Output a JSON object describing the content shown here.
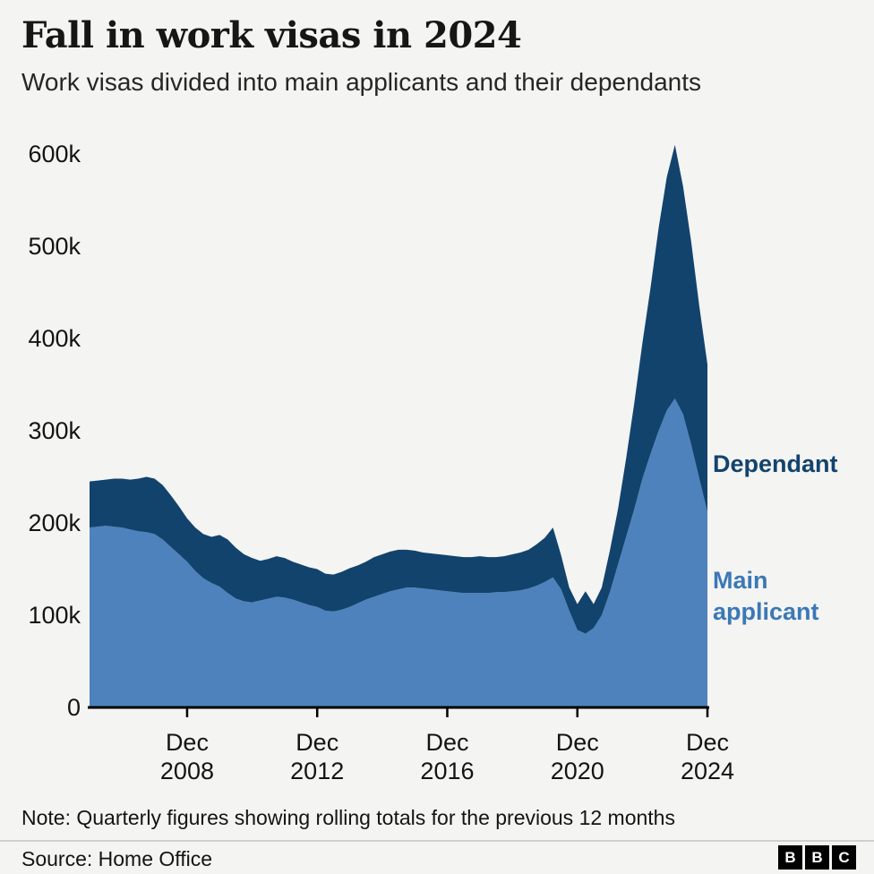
{
  "title": "Fall in work visas in 2024",
  "subtitle": "Work visas divided into main applicants and their dependants",
  "note": "Note: Quarterly figures showing rolling totals for the previous 12 months",
  "source": "Source: Home Office",
  "logo_letters": [
    "B",
    "B",
    "C"
  ],
  "labels": {
    "dependant": "Dependant",
    "main_line1": "Main",
    "main_line2": "applicant"
  },
  "colors": {
    "main": "#4d82bc",
    "dependant": "#12436D",
    "label_main": "#3b78b6",
    "label_dependant": "#12436D",
    "axis": "#000000",
    "background": "#f4f4f2"
  },
  "chart_data": {
    "type": "area",
    "stacked": true,
    "title": "Fall in work visas in 2024",
    "subtitle": "Work visas divided into main applicants and their dependants",
    "units": "thousands of visas (rolling 12-month totals, quarterly)",
    "x_start": "2005 Q4",
    "x_end": "2024 Q4",
    "frequency": "quarterly",
    "ylim": [
      0,
      620
    ],
    "grid": false,
    "legend_position": "right-inline",
    "series": [
      {
        "name": "Main applicant",
        "values": [
          195,
          196,
          197,
          196,
          195,
          193,
          191,
          190,
          188,
          182,
          174,
          166,
          158,
          148,
          140,
          135,
          131,
          124,
          118,
          115,
          114,
          116,
          118,
          120,
          119,
          117,
          114,
          111,
          109,
          105,
          104,
          106,
          109,
          113,
          117,
          120,
          123,
          126,
          128,
          130,
          130,
          129,
          128,
          127,
          126,
          125,
          124,
          124,
          124,
          124,
          125,
          125,
          126,
          127,
          129,
          132,
          136,
          141,
          128,
          105,
          84,
          80,
          86,
          100,
          125,
          155,
          185,
          215,
          248,
          275,
          300,
          322,
          335,
          318,
          285,
          248,
          212
        ]
      },
      {
        "name": "Dependant",
        "values": [
          50,
          50,
          50,
          52,
          53,
          54,
          57,
          60,
          60,
          59,
          56,
          52,
          47,
          47,
          48,
          50,
          56,
          58,
          55,
          51,
          48,
          43,
          43,
          44,
          43,
          41,
          41,
          41,
          41,
          40,
          40,
          41,
          42,
          41,
          41,
          43,
          43,
          43,
          43,
          41,
          40,
          39,
          39,
          39,
          39,
          39,
          39,
          39,
          40,
          39,
          38,
          39,
          40,
          41,
          42,
          45,
          48,
          54,
          37,
          25,
          28,
          46,
          26,
          30,
          45,
          60,
          85,
          115,
          147,
          180,
          220,
          253,
          275,
          247,
          220,
          187,
          160
        ]
      }
    ],
    "x_ticks": [
      {
        "index": 12,
        "label_top": "Dec",
        "label_bottom": "2008"
      },
      {
        "index": 28,
        "label_top": "Dec",
        "label_bottom": "2012"
      },
      {
        "index": 44,
        "label_top": "Dec",
        "label_bottom": "2016"
      },
      {
        "index": 60,
        "label_top": "Dec",
        "label_bottom": "2020"
      },
      {
        "index": 76,
        "label_top": "Dec",
        "label_bottom": "2024"
      }
    ],
    "y_ticks": [
      {
        "value": 0,
        "label": "0"
      },
      {
        "value": 100,
        "label": "100k"
      },
      {
        "value": 200,
        "label": "200k"
      },
      {
        "value": 300,
        "label": "300k"
      },
      {
        "value": 400,
        "label": "400k"
      },
      {
        "value": 500,
        "label": "500k"
      },
      {
        "value": 600,
        "label": "600k"
      }
    ]
  }
}
